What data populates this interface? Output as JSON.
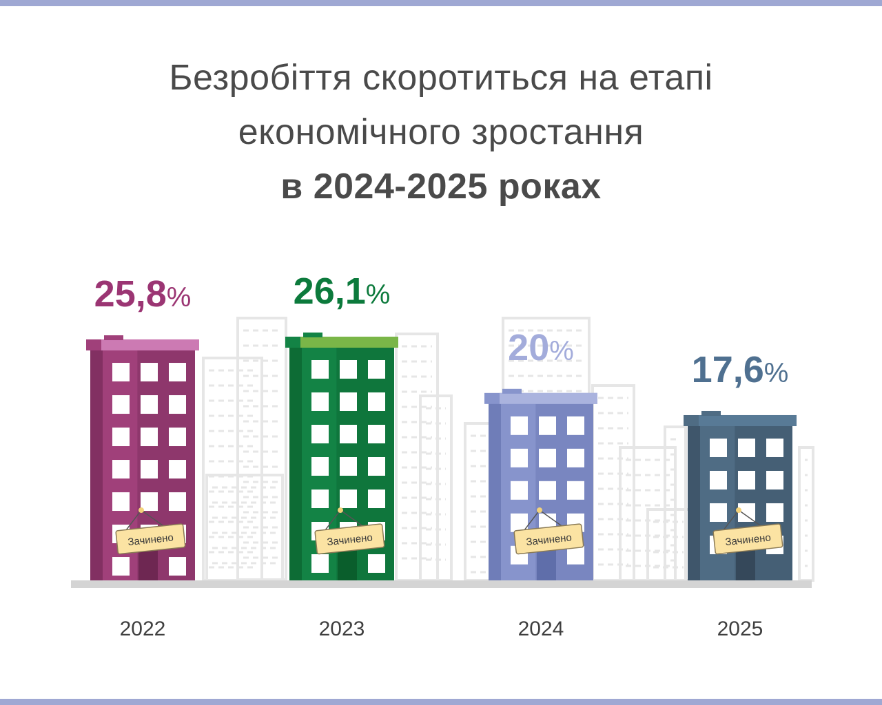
{
  "title": {
    "line1": "Безробіття скоротиться на етапі",
    "line2": "економічного зростання",
    "line3": "в 2024-2025 роках"
  },
  "sign_label": "Зачинено",
  "colors": {
    "stripe": "#9fa8d3",
    "ground": "#d4d4d4",
    "skyline": "#e6e6e6"
  },
  "chart_data": {
    "type": "bar",
    "categories": [
      "2022",
      "2023",
      "2024",
      "2025"
    ],
    "values": [
      25.8,
      26.1,
      20,
      17.6
    ],
    "value_labels": [
      "25,8",
      "26,1",
      "20",
      "17,6"
    ],
    "unit": "%",
    "colors": [
      {
        "main": "#a0407a",
        "dark": "#6e2752",
        "roof": "#cc7ab3",
        "label": "#9b3573"
      },
      {
        "main": "#138345",
        "dark": "#0a5e2c",
        "roof": "#7ab648",
        "label": "#0c7a3c"
      },
      {
        "main": "#8794cc",
        "dark": "#5f6eaa",
        "roof": "#aab3de",
        "label": "#a3acdb"
      },
      {
        "main": "#4f6c84",
        "dark": "#35485a",
        "roof": "#587a96",
        "label": "#4f7090"
      }
    ]
  }
}
